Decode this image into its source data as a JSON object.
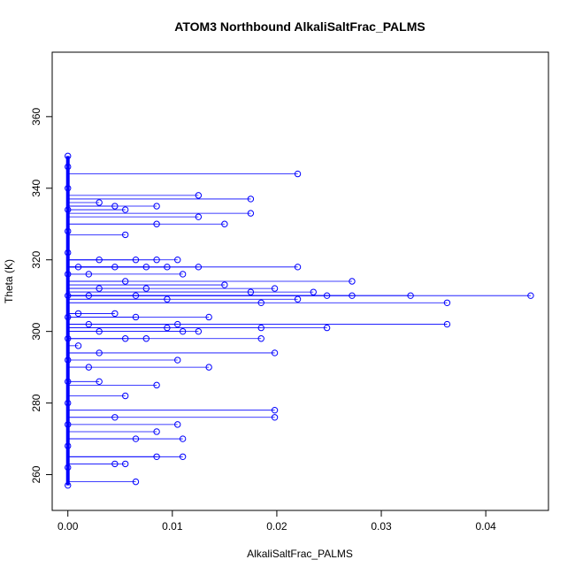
{
  "chart_data": {
    "type": "scatter",
    "title": "ATOM3 Northbound AlkaliSaltFrac_PALMS",
    "xlabel": "AlkaliSaltFrac_PALMS",
    "ylabel": "Theta (K)",
    "xlim": [
      -0.0015,
      0.046
    ],
    "ylim": [
      250,
      378
    ],
    "x_ticks": [
      0,
      0.01,
      0.02,
      0.03,
      0.04
    ],
    "x_tick_labels": [
      "0.00",
      "0.01",
      "0.02",
      "0.03",
      "0.04"
    ],
    "y_ticks": [
      260,
      280,
      300,
      320,
      340,
      360
    ],
    "y_tick_labels": [
      "260",
      "280",
      "300",
      "320",
      "340",
      "360"
    ],
    "series_color": "#0000ff",
    "marker": "open-circle",
    "grid": false,
    "points": [
      [
        0.0,
        257
      ],
      [
        0.0,
        262
      ],
      [
        0.0,
        268
      ],
      [
        0.0,
        274
      ],
      [
        0.0,
        280
      ],
      [
        0.0,
        286
      ],
      [
        0.0,
        292
      ],
      [
        0.0,
        298
      ],
      [
        0.0,
        304
      ],
      [
        0.0,
        310
      ],
      [
        0.0,
        316
      ],
      [
        0.0,
        322
      ],
      [
        0.0,
        328
      ],
      [
        0.0,
        334
      ],
      [
        0.0,
        340
      ],
      [
        0.0,
        346
      ],
      [
        0.0,
        349
      ],
      [
        0.001,
        318
      ],
      [
        0.001,
        305
      ],
      [
        0.001,
        296
      ],
      [
        0.002,
        316
      ],
      [
        0.002,
        310
      ],
      [
        0.002,
        302
      ],
      [
        0.002,
        290
      ],
      [
        0.003,
        336
      ],
      [
        0.003,
        320
      ],
      [
        0.003,
        312
      ],
      [
        0.003,
        300
      ],
      [
        0.003,
        294
      ],
      [
        0.003,
        286
      ],
      [
        0.0045,
        335
      ],
      [
        0.0045,
        318
      ],
      [
        0.0045,
        305
      ],
      [
        0.0045,
        276
      ],
      [
        0.0045,
        263
      ],
      [
        0.0055,
        334
      ],
      [
        0.0055,
        327
      ],
      [
        0.0055,
        314
      ],
      [
        0.0055,
        298
      ],
      [
        0.0055,
        282
      ],
      [
        0.0055,
        263
      ],
      [
        0.0065,
        320
      ],
      [
        0.0065,
        310
      ],
      [
        0.0065,
        304
      ],
      [
        0.0065,
        270
      ],
      [
        0.0065,
        258
      ],
      [
        0.0075,
        318
      ],
      [
        0.0075,
        312
      ],
      [
        0.0075,
        298
      ],
      [
        0.0085,
        335
      ],
      [
        0.0085,
        330
      ],
      [
        0.0085,
        320
      ],
      [
        0.0085,
        285
      ],
      [
        0.0085,
        272
      ],
      [
        0.0085,
        265
      ],
      [
        0.0095,
        318
      ],
      [
        0.0095,
        309
      ],
      [
        0.0095,
        301
      ],
      [
        0.0105,
        320
      ],
      [
        0.0105,
        302
      ],
      [
        0.0105,
        292
      ],
      [
        0.0105,
        274
      ],
      [
        0.011,
        316
      ],
      [
        0.011,
        300
      ],
      [
        0.011,
        270
      ],
      [
        0.011,
        265
      ],
      [
        0.0125,
        338
      ],
      [
        0.0125,
        332
      ],
      [
        0.0125,
        318
      ],
      [
        0.0125,
        300
      ],
      [
        0.0135,
        304
      ],
      [
        0.0135,
        290
      ],
      [
        0.015,
        330
      ],
      [
        0.015,
        313
      ],
      [
        0.0175,
        337
      ],
      [
        0.0175,
        333
      ],
      [
        0.0175,
        311
      ],
      [
        0.0185,
        308
      ],
      [
        0.0185,
        301
      ],
      [
        0.0185,
        298
      ],
      [
        0.0198,
        312
      ],
      [
        0.0198,
        294
      ],
      [
        0.0198,
        278
      ],
      [
        0.0198,
        276
      ],
      [
        0.022,
        344
      ],
      [
        0.022,
        318
      ],
      [
        0.022,
        309
      ],
      [
        0.0235,
        311
      ],
      [
        0.0248,
        310
      ],
      [
        0.0248,
        301
      ],
      [
        0.0272,
        314
      ],
      [
        0.0272,
        310
      ],
      [
        0.0328,
        310
      ],
      [
        0.0363,
        308
      ],
      [
        0.0363,
        302
      ],
      [
        0.0443,
        310
      ]
    ]
  }
}
